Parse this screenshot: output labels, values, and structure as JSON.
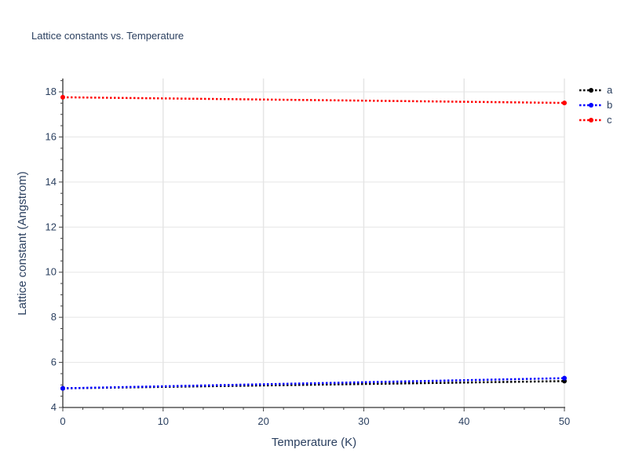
{
  "chart_data": {
    "type": "line",
    "title": "Lattice constants vs. Temperature",
    "xlabel": "Temperature (K)",
    "ylabel": "Lattice constant (Angstrom)",
    "xlim": [
      0,
      50
    ],
    "ylim": [
      3.95,
      18.6
    ],
    "xticks": [
      0,
      10,
      20,
      30,
      40,
      50
    ],
    "yticks": [
      4,
      6,
      8,
      10,
      12,
      14,
      16,
      18
    ],
    "grid": true,
    "legend": "top-right",
    "line_style": "dotted",
    "series": [
      {
        "name": "a",
        "color": "#000000",
        "x": [
          0,
          50
        ],
        "y": [
          4.85,
          5.17
        ]
      },
      {
        "name": "b",
        "color": "#0000ff",
        "x": [
          0,
          50
        ],
        "y": [
          4.85,
          5.3
        ]
      },
      {
        "name": "c",
        "color": "#ff0000",
        "x": [
          0,
          50
        ],
        "y": [
          17.76,
          17.51
        ]
      }
    ]
  }
}
